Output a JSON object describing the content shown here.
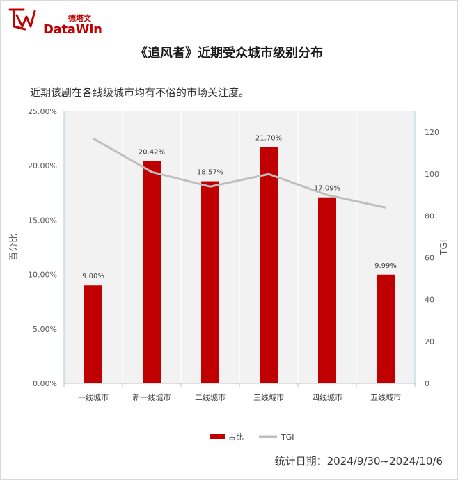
{
  "brand": {
    "name_zh": "德塔文",
    "name_en": "DataWin"
  },
  "header": {
    "title": "《追风者》近期受众城市级别分布"
  },
  "note": "近期该剧在各线级城市均有不俗的市场关注度。",
  "footer": {
    "date_range": "统计日期：2024/9/30~2024/10/6"
  },
  "colors": {
    "bar": "#c00000",
    "line": "#bfbfbf",
    "plot_bg": "#f2f2f2",
    "brand": "#c00000"
  },
  "chart_data": {
    "type": "bar+line",
    "categories": [
      "一线城市",
      "新一线城市",
      "二线城市",
      "三线城市",
      "四线城市",
      "五线城市"
    ],
    "series": [
      {
        "name": "占比",
        "type": "bar",
        "axis": "left",
        "values": [
          9.0,
          20.42,
          18.57,
          21.7,
          17.09,
          9.99
        ],
        "labels": [
          "9.00%",
          "20.42%",
          "18.57%",
          "21.70%",
          "17.09%",
          "9.99%"
        ]
      },
      {
        "name": "TGI",
        "type": "line",
        "axis": "right",
        "values": [
          117,
          101,
          94,
          100,
          90,
          84
        ]
      }
    ],
    "y_left": {
      "label": "百分比",
      "min": 0,
      "max": 25,
      "ticks": [
        "0.00%",
        "5.00%",
        "10.00%",
        "15.00%",
        "20.00%",
        "25.00%"
      ]
    },
    "y_right": {
      "label": "TGI",
      "min": 0,
      "max": 130,
      "ticks": [
        "0",
        "20",
        "40",
        "60",
        "80",
        "100",
        "120"
      ]
    },
    "legend_position": "bottom",
    "grid": "vertical category bands"
  }
}
